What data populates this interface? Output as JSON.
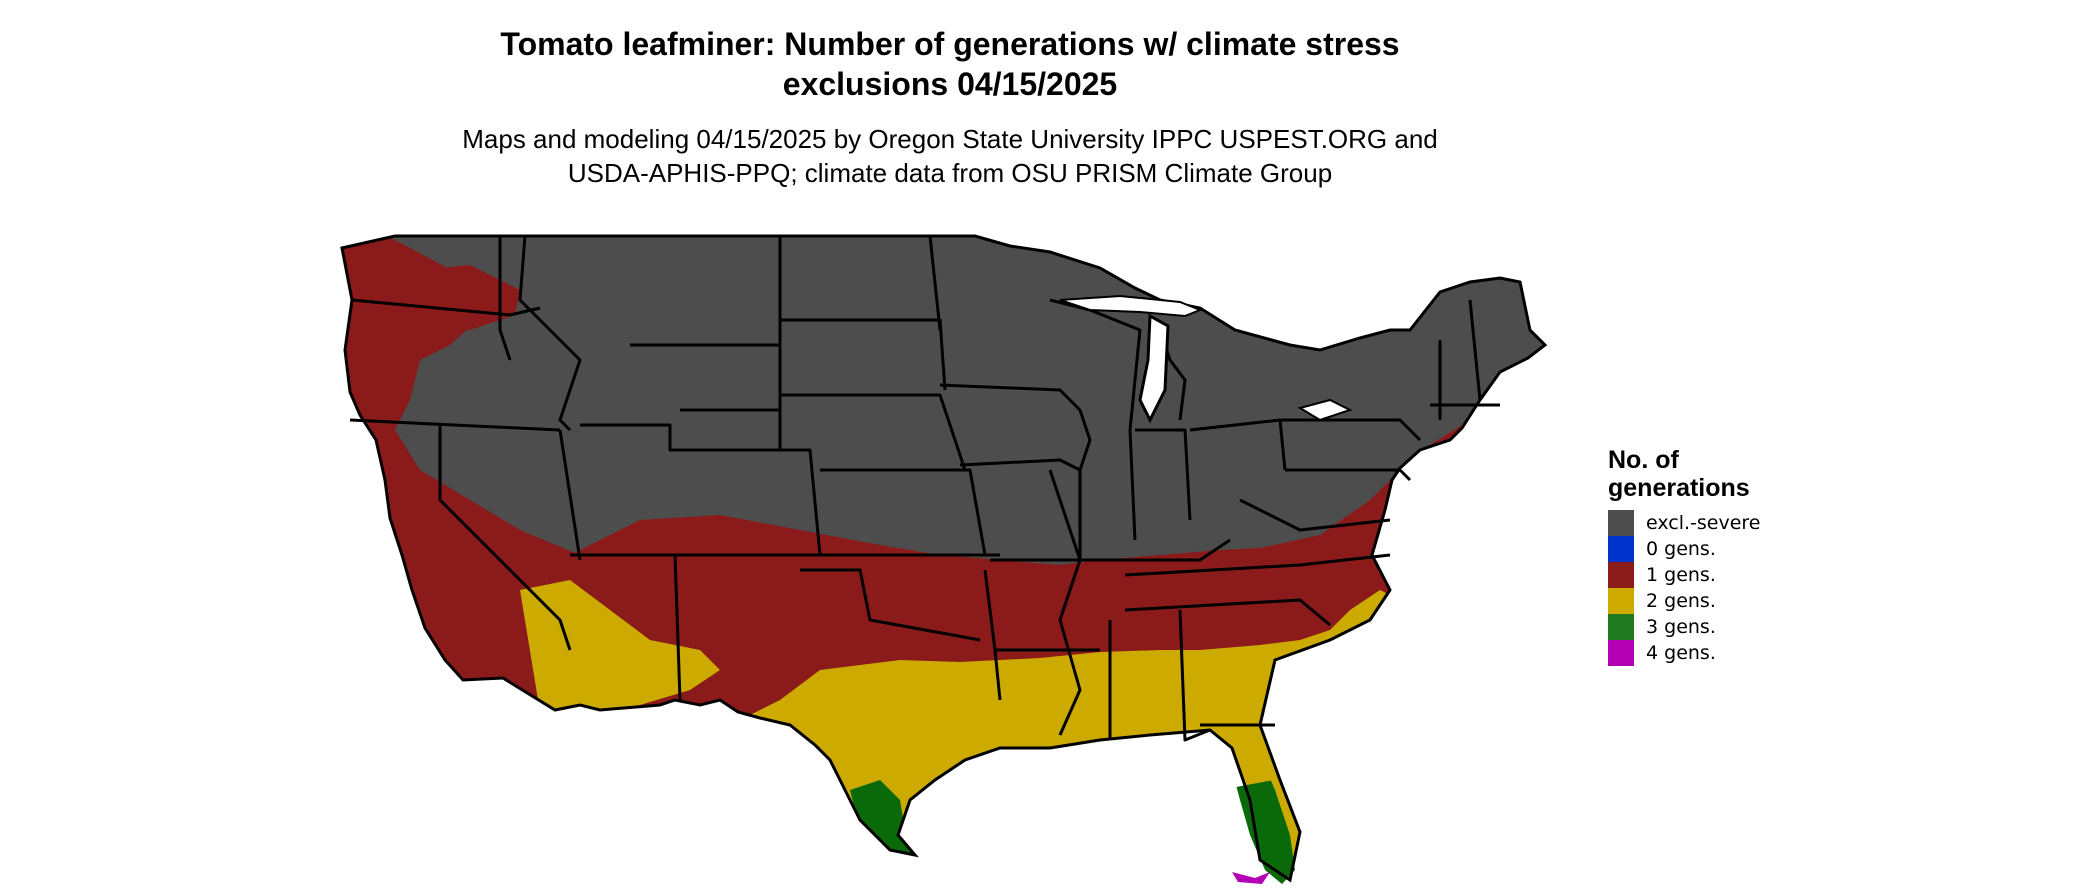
{
  "title": {
    "line1": "Tomato leafminer: Number of generations w/ climate stress",
    "line2": "exclusions 04/15/2025"
  },
  "subtitle": {
    "line1": "Maps and modeling 04/15/2025 by Oregon State University IPPC USPEST.ORG and",
    "line2": "USDA-APHIS-PPQ; climate data from OSU PRISM Climate Group"
  },
  "legend": {
    "title": "No. of generations",
    "items": [
      {
        "label": "excl.-severe",
        "color": "#4d4d4d"
      },
      {
        "label": "0 gens.",
        "color": "#0033cc"
      },
      {
        "label": "1 gens.",
        "color": "#8b1a1a"
      },
      {
        "label": "2 gens.",
        "color": "#ccaa00"
      },
      {
        "label": "3 gens.",
        "color": "#1f7a1f"
      },
      {
        "label": "4 gens.",
        "color": "#b300b3"
      }
    ]
  },
  "map": {
    "region": "contiguous-united-states",
    "colors": {
      "excluded": "#4d4d4d",
      "one_gen": "#8b1a1a",
      "two_gen": "#ccaa00",
      "three_gen": "#0a6a0a",
      "four_gen": "#b300b3",
      "border": "#000000"
    }
  }
}
